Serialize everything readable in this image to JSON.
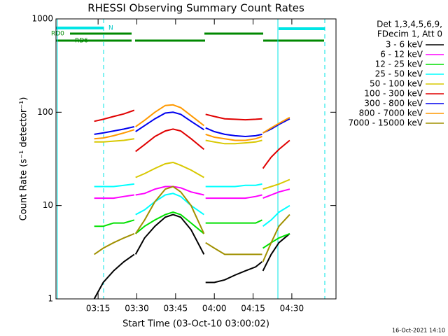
{
  "chart_data": {
    "type": "line",
    "title": "RHESSI Observing Summary Count Rates",
    "x_label": "Start Time (03-Oct-10 03:00:02)",
    "y_label": "Count Rate (s⁻¹ detector⁻¹)",
    "legend_header": [
      "Det 1,3,4,5,6,9,",
      "FDecim 1, Att 0"
    ],
    "footer": "16-Oct-2021 14:10",
    "state_labels": [
      "N",
      "RD0",
      "RD6"
    ],
    "yscale": "log",
    "ylim": [
      1,
      1000
    ],
    "yticks": [
      1,
      10,
      100,
      1000
    ],
    "xlim": [
      -1.3,
      107.1
    ],
    "xticks": [
      {
        "value": 15,
        "label": "03:15"
      },
      {
        "value": 30,
        "label": "03:30"
      },
      {
        "value": 45,
        "label": "03:45"
      },
      {
        "value": 60,
        "label": "04:00"
      },
      {
        "value": 75,
        "label": "04:15"
      },
      {
        "value": 90,
        "label": "04:30"
      }
    ],
    "x": [
      13.5,
      17,
      21,
      25,
      29,
      29.2,
      29.5,
      33,
      37,
      41,
      44,
      47,
      51,
      56,
      56.3,
      56.6,
      60,
      64,
      68,
      72,
      76,
      78.5,
      78.6,
      78.8,
      82,
      85,
      89.2
    ],
    "series": [
      {
        "name": "3 - 6 keV",
        "color": "#000000",
        "values": [
          1,
          1.5,
          2,
          2.5,
          3,
          null,
          3,
          4.5,
          6,
          7.5,
          8,
          7.5,
          5.5,
          3,
          null,
          1.5,
          1.5,
          1.6,
          1.8,
          2,
          2.2,
          2.5,
          null,
          2,
          3,
          4,
          5
        ]
      },
      {
        "name": "6 - 12 keV",
        "color": "#ff00ff",
        "values": [
          12,
          12,
          12,
          12.5,
          13,
          null,
          13,
          13.5,
          15,
          16,
          16,
          15.5,
          14,
          13,
          null,
          12,
          12,
          12,
          12,
          12,
          12.5,
          13,
          null,
          12,
          13,
          14,
          15
        ]
      },
      {
        "name": "12 - 25 keV",
        "color": "#00e000",
        "values": [
          6,
          6,
          6.5,
          6.5,
          7,
          null,
          5,
          6,
          7,
          8,
          8.5,
          8,
          6.5,
          5,
          null,
          6.5,
          6.5,
          6.5,
          6.5,
          6.5,
          6.5,
          7,
          null,
          3.5,
          4,
          4.5,
          5
        ]
      },
      {
        "name": "25 - 50 keV",
        "color": "#00ffff",
        "values": [
          16,
          16,
          16,
          16.5,
          17,
          null,
          8,
          9,
          11,
          13,
          13.5,
          12.5,
          10,
          8,
          null,
          16,
          16,
          16,
          16,
          16.5,
          16.5,
          17,
          null,
          6,
          7,
          8.5,
          10
        ]
      },
      {
        "name": "50 - 100 keV",
        "color": "#d8c800",
        "values": [
          48,
          48,
          49,
          50,
          52,
          null,
          20,
          22,
          25,
          28,
          29,
          27,
          24,
          20,
          null,
          50,
          48,
          46,
          46,
          47,
          48,
          50,
          null,
          15,
          16,
          17,
          19
        ]
      },
      {
        "name": "100 - 300 keV",
        "color": "#e00000",
        "values": [
          80,
          84,
          90,
          96,
          105,
          null,
          38,
          45,
          55,
          63,
          66,
          63,
          52,
          40,
          null,
          95,
          90,
          85,
          84,
          83,
          84,
          85,
          null,
          25,
          33,
          40,
          50
        ]
      },
      {
        "name": "300 - 800 keV",
        "color": "#0000ee",
        "values": [
          58,
          60,
          63,
          66,
          70,
          null,
          62,
          72,
          85,
          98,
          100,
          95,
          80,
          65,
          null,
          68,
          62,
          58,
          56,
          55,
          56,
          58,
          null,
          60,
          66,
          74,
          85
        ]
      },
      {
        "name": "800 - 7000 keV",
        "color": "#ff9900",
        "values": [
          52,
          53,
          56,
          60,
          65,
          null,
          70,
          82,
          100,
          118,
          120,
          112,
          92,
          72,
          null,
          58,
          54,
          52,
          50,
          50,
          52,
          55,
          null,
          60,
          68,
          76,
          88
        ]
      },
      {
        "name": "7000 - 15000 keV",
        "color": "#a09000",
        "values": [
          3,
          3.5,
          4,
          4.5,
          5,
          null,
          5,
          7,
          11,
          15,
          16,
          14,
          10,
          5,
          null,
          4,
          3.5,
          3,
          3,
          3,
          3,
          3,
          null,
          2.5,
          4,
          6,
          8
        ]
      }
    ]
  }
}
